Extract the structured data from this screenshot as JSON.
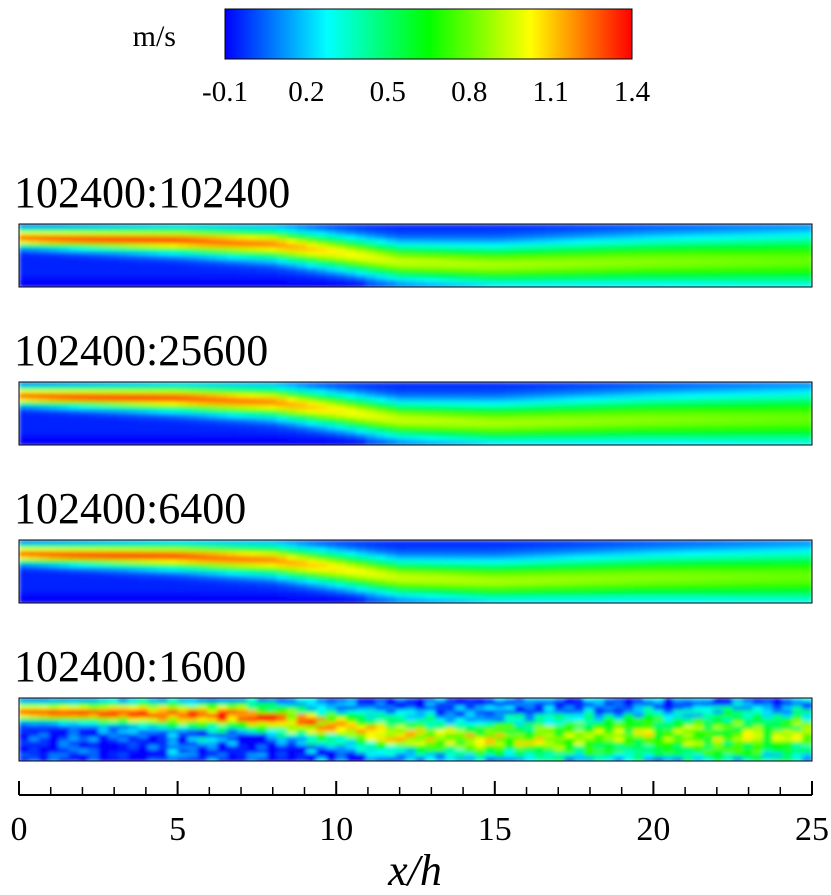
{
  "chart_data": {
    "type": "heatmap",
    "colorbar": {
      "unit": "m/s",
      "ticks": [
        "-0.1",
        "0.2",
        "0.5",
        "0.8",
        "1.1",
        "1.4"
      ],
      "range": [
        -0.1,
        1.4
      ],
      "colormap": [
        "#0000ff",
        "#00ffff",
        "#00ff00",
        "#ffff00",
        "#ff0000"
      ]
    },
    "panels": [
      {
        "label": "102400:102400",
        "noise": 0
      },
      {
        "label": "102400:25600",
        "noise": 0
      },
      {
        "label": "102400:6400",
        "noise": 0
      },
      {
        "label": "102400:1600",
        "noise": 1
      }
    ],
    "x_axis": {
      "label": "x/h",
      "range": [
        0,
        25
      ],
      "ticks": [
        "0",
        "5",
        "10",
        "15",
        "20",
        "25"
      ],
      "tick_values": [
        0,
        5,
        10,
        15,
        20,
        25
      ],
      "minor_step": 1
    },
    "jet_profile": {
      "x": [
        0,
        5,
        8,
        10,
        12,
        15,
        20,
        25
      ],
      "peak_velocity": [
        1.35,
        1.3,
        1.2,
        1.05,
        0.95,
        0.9,
        0.85,
        0.8
      ],
      "centerline_y_over_h": [
        0.78,
        0.74,
        0.68,
        0.55,
        0.4,
        0.35,
        0.4,
        0.42
      ]
    }
  }
}
